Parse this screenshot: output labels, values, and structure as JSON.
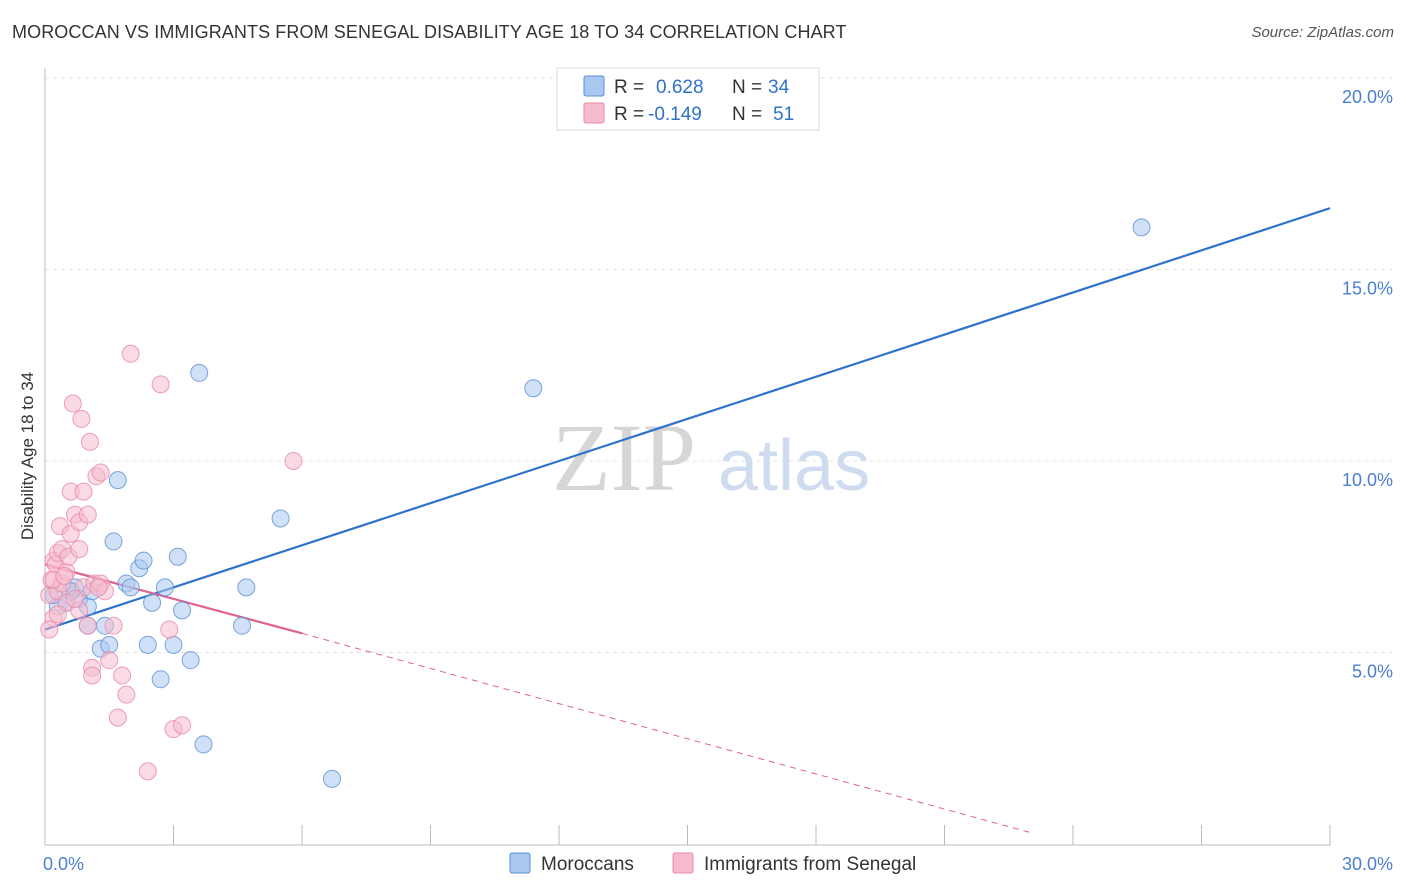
{
  "header": {
    "title": "MOROCCAN VS IMMIGRANTS FROM SENEGAL DISABILITY AGE 18 TO 34 CORRELATION CHART",
    "source": "Source: ZipAtlas.com"
  },
  "watermark": {
    "zip": "ZIP",
    "atlas": "atlas"
  },
  "colors": {
    "blue_fill": "#a9c8f0",
    "blue_stroke": "#5b8fd6",
    "blue_line": "#2f72cc",
    "pink_fill": "#f6bccd",
    "pink_stroke": "#e88aa6",
    "pink_line": "#e0608e",
    "grid": "#e3e3e3",
    "tick_text": "#4a7fd0"
  },
  "legend": {
    "rows": [
      {
        "r_label": "R = ",
        "r_value": "0.628",
        "n_label": "N = ",
        "n_value": "34"
      },
      {
        "r_label": "R = ",
        "r_value": "-0.149",
        "n_label": "N = ",
        "n_value": "51"
      }
    ]
  },
  "chart_data": {
    "type": "scatter",
    "title": "MOROCCAN VS IMMIGRANTS FROM SENEGAL DISABILITY AGE 18 TO 34 CORRELATION CHART",
    "xlabel": "",
    "ylabel": "Disability Age 18 to 34",
    "xlim": [
      0,
      30
    ],
    "ylim": [
      0,
      20
    ],
    "x_tick_labels": [
      "0.0%",
      "30.0%"
    ],
    "y_ticks": [
      5,
      10,
      15,
      20
    ],
    "y_tick_labels": [
      "5.0%",
      "10.0%",
      "15.0%",
      "20.0%"
    ],
    "grid": true,
    "series": [
      {
        "name": "Moroccans",
        "points": [
          [
            0.3,
            6.2
          ],
          [
            0.5,
            6.3
          ],
          [
            0.7,
            6.7
          ],
          [
            0.8,
            6.4
          ],
          [
            1.0,
            5.7
          ],
          [
            1.0,
            6.2
          ],
          [
            1.1,
            6.6
          ],
          [
            1.3,
            5.1
          ],
          [
            1.4,
            5.7
          ],
          [
            1.5,
            5.2
          ],
          [
            1.6,
            7.9
          ],
          [
            1.7,
            9.5
          ],
          [
            1.9,
            6.8
          ],
          [
            2.0,
            6.7
          ],
          [
            2.2,
            7.2
          ],
          [
            2.3,
            7.4
          ],
          [
            2.4,
            5.2
          ],
          [
            2.5,
            6.3
          ],
          [
            2.7,
            4.3
          ],
          [
            2.8,
            6.7
          ],
          [
            3.0,
            5.2
          ],
          [
            3.1,
            7.5
          ],
          [
            3.2,
            6.1
          ],
          [
            3.4,
            4.8
          ],
          [
            3.6,
            12.3
          ],
          [
            3.7,
            2.6
          ],
          [
            4.6,
            5.7
          ],
          [
            4.7,
            6.7
          ],
          [
            5.5,
            8.5
          ],
          [
            6.7,
            1.7
          ],
          [
            11.4,
            11.9
          ],
          [
            25.6,
            16.1
          ],
          [
            0.2,
            6.5
          ],
          [
            0.6,
            6.6
          ]
        ]
      },
      {
        "name": "Immigrants from Senegal",
        "points": [
          [
            0.1,
            6.5
          ],
          [
            0.15,
            6.9
          ],
          [
            0.2,
            5.9
          ],
          [
            0.2,
            7.4
          ],
          [
            0.25,
            7.3
          ],
          [
            0.3,
            6.6
          ],
          [
            0.3,
            7.6
          ],
          [
            0.35,
            8.3
          ],
          [
            0.4,
            6.8
          ],
          [
            0.4,
            7.7
          ],
          [
            0.5,
            7.1
          ],
          [
            0.5,
            6.3
          ],
          [
            0.55,
            7.5
          ],
          [
            0.6,
            8.1
          ],
          [
            0.6,
            9.2
          ],
          [
            0.65,
            11.5
          ],
          [
            0.7,
            8.6
          ],
          [
            0.8,
            8.4
          ],
          [
            0.8,
            6.1
          ],
          [
            0.8,
            7.7
          ],
          [
            0.85,
            11.1
          ],
          [
            0.9,
            9.2
          ],
          [
            0.9,
            6.7
          ],
          [
            1.0,
            5.7
          ],
          [
            1.0,
            8.6
          ],
          [
            1.05,
            10.5
          ],
          [
            1.1,
            4.6
          ],
          [
            1.1,
            4.4
          ],
          [
            1.15,
            6.8
          ],
          [
            1.2,
            9.6
          ],
          [
            1.3,
            9.7
          ],
          [
            1.3,
            6.8
          ],
          [
            1.4,
            6.6
          ],
          [
            1.5,
            4.8
          ],
          [
            1.6,
            5.7
          ],
          [
            1.7,
            3.3
          ],
          [
            1.8,
            4.4
          ],
          [
            1.9,
            3.9
          ],
          [
            2.0,
            12.8
          ],
          [
            2.4,
            1.9
          ],
          [
            2.7,
            12.0
          ],
          [
            2.9,
            5.6
          ],
          [
            3.0,
            3.0
          ],
          [
            3.2,
            3.1
          ],
          [
            5.8,
            10.0
          ],
          [
            0.1,
            5.6
          ],
          [
            0.2,
            6.9
          ],
          [
            0.3,
            6.0
          ],
          [
            0.45,
            7.0
          ],
          [
            0.7,
            6.4
          ],
          [
            1.25,
            6.7
          ]
        ]
      }
    ],
    "trendlines": [
      {
        "series": "Moroccans",
        "x": [
          0,
          30
        ],
        "y": [
          5.6,
          16.6
        ],
        "style": "solid"
      },
      {
        "series": "Immigrants from Senegal",
        "x": [
          0,
          6.0
        ],
        "y": [
          7.3,
          5.5
        ],
        "style": "solid"
      },
      {
        "series": "Immigrants from Senegal",
        "x": [
          6.0,
          23.0
        ],
        "y": [
          5.5,
          0.3
        ],
        "style": "dashed"
      }
    ],
    "legend_entries": [
      "Moroccans",
      "Immigrants from Senegal"
    ]
  }
}
